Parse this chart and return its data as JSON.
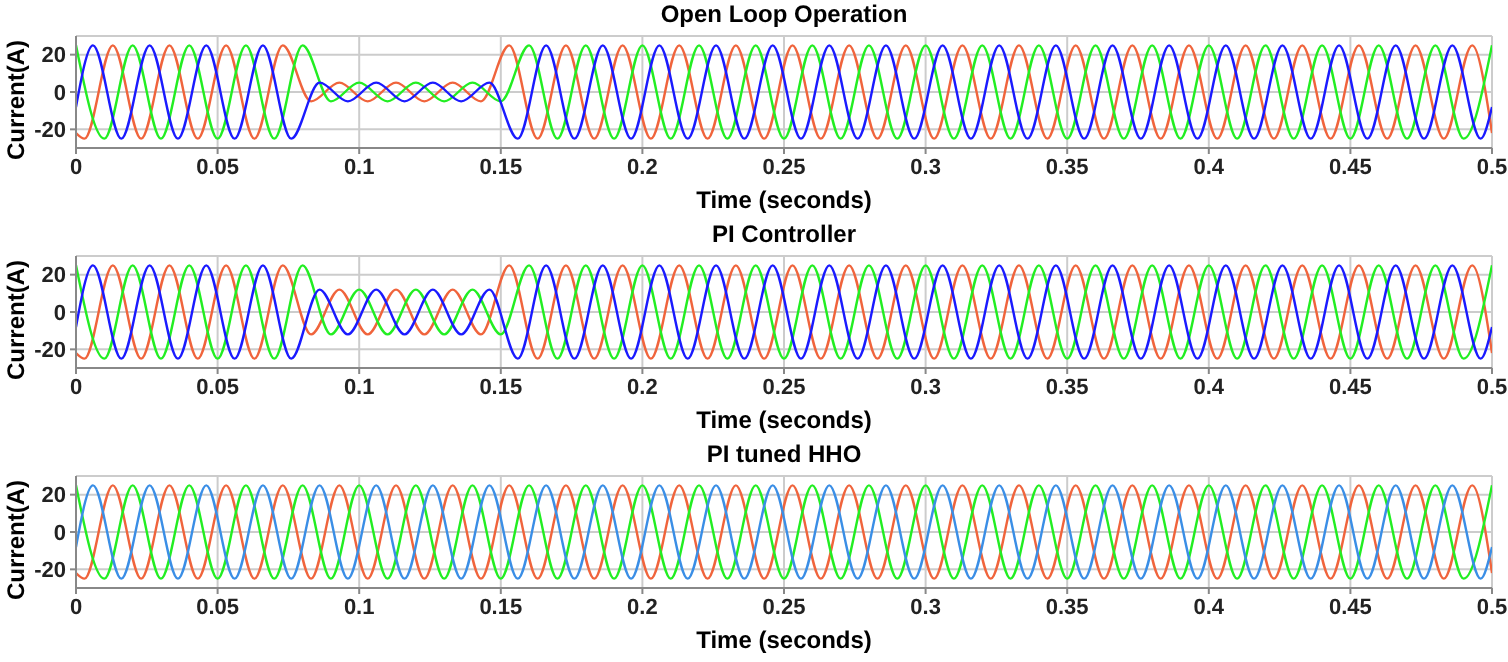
{
  "chart_data": [
    {
      "type": "line",
      "title": "Open Loop Operation",
      "xlabel": "Time (seconds)",
      "ylabel": "Current(A)",
      "xlim": [
        0,
        0.5
      ],
      "xticks": [
        0,
        0.05,
        0.1,
        0.15,
        0.2,
        0.25,
        0.3,
        0.35,
        0.4,
        0.45,
        0.5
      ],
      "ylim": [
        -30,
        30
      ],
      "yticks": [
        -20,
        0,
        20
      ],
      "grid": true,
      "marker": "none",
      "series": [
        {
          "color": "#f0643c",
          "x": [
            0,
            0.003,
            0.013,
            0.023,
            0.033,
            0.043,
            0.053,
            0.063,
            0.073,
            0.083,
            0.093,
            0.103,
            0.113,
            0.123,
            0.133,
            0.143,
            0.153,
            0.163,
            0.173,
            0.183,
            0.193,
            0.203,
            0.213,
            0.223,
            0.233,
            0.243,
            0.253,
            0.263,
            0.273,
            0.283,
            0.293,
            0.303,
            0.313,
            0.323,
            0.333,
            0.343,
            0.353,
            0.363,
            0.373,
            0.383,
            0.393,
            0.403,
            0.413,
            0.423,
            0.433,
            0.443,
            0.453,
            0.463,
            0.473,
            0.483,
            0.493,
            0.5
          ],
          "values": [
            -22,
            -25,
            25,
            -25,
            25,
            -25,
            25,
            -25,
            25,
            -5,
            5,
            -5,
            5,
            -5,
            5,
            -5,
            25,
            -25,
            25,
            -25,
            25,
            -25,
            25,
            -25,
            25,
            -25,
            25,
            -25,
            25,
            -25,
            25,
            -25,
            25,
            -25,
            25,
            -25,
            25,
            -25,
            25,
            -25,
            25,
            -25,
            25,
            -25,
            25,
            -25,
            25,
            -25,
            25,
            -25,
            25,
            -22
          ]
        },
        {
          "color": "#22ee22",
          "x": [
            0,
            0.01,
            0.02,
            0.03,
            0.04,
            0.05,
            0.06,
            0.07,
            0.08,
            0.09,
            0.1,
            0.11,
            0.12,
            0.13,
            0.14,
            0.15,
            0.16,
            0.17,
            0.18,
            0.19,
            0.2,
            0.21,
            0.22,
            0.23,
            0.24,
            0.25,
            0.26,
            0.27,
            0.28,
            0.29,
            0.3,
            0.31,
            0.32,
            0.33,
            0.34,
            0.35,
            0.36,
            0.37,
            0.38,
            0.39,
            0.4,
            0.41,
            0.42,
            0.43,
            0.44,
            0.45,
            0.46,
            0.47,
            0.48,
            0.49,
            0.5
          ],
          "values": [
            25,
            -25,
            25,
            -25,
            25,
            -25,
            25,
            -25,
            25,
            -5,
            5,
            -5,
            5,
            -5,
            5,
            -5,
            25,
            -25,
            25,
            -25,
            25,
            -25,
            25,
            -25,
            25,
            -25,
            25,
            -25,
            25,
            -25,
            25,
            -25,
            25,
            -25,
            25,
            -25,
            25,
            -25,
            25,
            -25,
            25,
            -25,
            25,
            -25,
            25,
            -25,
            25,
            -25,
            25,
            -25,
            25
          ]
        },
        {
          "color": "#1a1aff",
          "x": [
            0,
            0.006,
            0.016,
            0.026,
            0.036,
            0.046,
            0.056,
            0.066,
            0.076,
            0.086,
            0.096,
            0.106,
            0.116,
            0.126,
            0.136,
            0.146,
            0.156,
            0.166,
            0.176,
            0.186,
            0.196,
            0.206,
            0.216,
            0.226,
            0.236,
            0.246,
            0.256,
            0.266,
            0.276,
            0.286,
            0.296,
            0.306,
            0.316,
            0.326,
            0.336,
            0.346,
            0.356,
            0.366,
            0.376,
            0.386,
            0.396,
            0.406,
            0.416,
            0.426,
            0.436,
            0.446,
            0.456,
            0.466,
            0.476,
            0.486,
            0.496,
            0.5
          ],
          "values": [
            -8,
            25,
            -25,
            25,
            -25,
            25,
            -25,
            25,
            -25,
            5,
            -5,
            5,
            -5,
            5,
            -5,
            5,
            -25,
            25,
            -25,
            25,
            -25,
            25,
            -25,
            25,
            -25,
            25,
            -25,
            25,
            -25,
            25,
            -25,
            25,
            -25,
            25,
            -25,
            25,
            -25,
            25,
            -25,
            25,
            -25,
            25,
            -25,
            25,
            -25,
            25,
            -25,
            25,
            -25,
            25,
            -25,
            -8
          ]
        }
      ]
    },
    {
      "type": "line",
      "title": "PI Controller",
      "xlabel": "Time (seconds)",
      "ylabel": "Current(A)",
      "xlim": [
        0,
        0.5
      ],
      "xticks": [
        0,
        0.05,
        0.1,
        0.15,
        0.2,
        0.25,
        0.3,
        0.35,
        0.4,
        0.45,
        0.5
      ],
      "ylim": [
        -30,
        30
      ],
      "yticks": [
        -20,
        0,
        20
      ],
      "grid": true,
      "marker": "none",
      "series": [
        {
          "color": "#f0643c",
          "x": [
            0,
            0.003,
            0.013,
            0.023,
            0.033,
            0.043,
            0.053,
            0.063,
            0.073,
            0.083,
            0.093,
            0.103,
            0.113,
            0.123,
            0.133,
            0.143,
            0.153,
            0.163,
            0.173,
            0.183,
            0.193,
            0.203,
            0.213,
            0.223,
            0.233,
            0.243,
            0.253,
            0.263,
            0.273,
            0.283,
            0.293,
            0.303,
            0.313,
            0.323,
            0.333,
            0.343,
            0.353,
            0.363,
            0.373,
            0.383,
            0.393,
            0.403,
            0.413,
            0.423,
            0.433,
            0.443,
            0.453,
            0.463,
            0.473,
            0.483,
            0.493,
            0.5
          ],
          "values": [
            -22,
            -25,
            25,
            -25,
            25,
            -25,
            25,
            -25,
            25,
            -12,
            12,
            -12,
            12,
            -12,
            12,
            -12,
            25,
            -25,
            25,
            -25,
            25,
            -25,
            25,
            -25,
            25,
            -25,
            25,
            -25,
            25,
            -25,
            25,
            -25,
            25,
            -25,
            25,
            -25,
            25,
            -25,
            25,
            -25,
            25,
            -25,
            25,
            -25,
            25,
            -25,
            25,
            -25,
            25,
            -25,
            25,
            -22
          ]
        },
        {
          "color": "#22ee22",
          "x": [
            0,
            0.01,
            0.02,
            0.03,
            0.04,
            0.05,
            0.06,
            0.07,
            0.08,
            0.09,
            0.1,
            0.11,
            0.12,
            0.13,
            0.14,
            0.15,
            0.16,
            0.17,
            0.18,
            0.19,
            0.2,
            0.21,
            0.22,
            0.23,
            0.24,
            0.25,
            0.26,
            0.27,
            0.28,
            0.29,
            0.3,
            0.31,
            0.32,
            0.33,
            0.34,
            0.35,
            0.36,
            0.37,
            0.38,
            0.39,
            0.4,
            0.41,
            0.42,
            0.43,
            0.44,
            0.45,
            0.46,
            0.47,
            0.48,
            0.49,
            0.5
          ],
          "values": [
            25,
            -25,
            25,
            -25,
            25,
            -25,
            25,
            -25,
            25,
            -12,
            12,
            -12,
            12,
            -12,
            12,
            -12,
            25,
            -25,
            25,
            -25,
            25,
            -25,
            25,
            -25,
            25,
            -25,
            25,
            -25,
            25,
            -25,
            25,
            -25,
            25,
            -25,
            25,
            -25,
            25,
            -25,
            25,
            -25,
            25,
            -25,
            25,
            -25,
            25,
            -25,
            25,
            -25,
            25,
            -25,
            25
          ]
        },
        {
          "color": "#1a1aff",
          "x": [
            0,
            0.006,
            0.016,
            0.026,
            0.036,
            0.046,
            0.056,
            0.066,
            0.076,
            0.086,
            0.096,
            0.106,
            0.116,
            0.126,
            0.136,
            0.146,
            0.156,
            0.166,
            0.176,
            0.186,
            0.196,
            0.206,
            0.216,
            0.226,
            0.236,
            0.246,
            0.256,
            0.266,
            0.276,
            0.286,
            0.296,
            0.306,
            0.316,
            0.326,
            0.336,
            0.346,
            0.356,
            0.366,
            0.376,
            0.386,
            0.396,
            0.406,
            0.416,
            0.426,
            0.436,
            0.446,
            0.456,
            0.466,
            0.476,
            0.486,
            0.496,
            0.5
          ],
          "values": [
            -8,
            25,
            -25,
            25,
            -25,
            25,
            -25,
            25,
            -25,
            12,
            -12,
            12,
            -12,
            12,
            -12,
            12,
            -25,
            25,
            -25,
            25,
            -25,
            25,
            -25,
            25,
            -25,
            25,
            -25,
            25,
            -25,
            25,
            -25,
            25,
            -25,
            25,
            -25,
            25,
            -25,
            25,
            -25,
            25,
            -25,
            25,
            -25,
            25,
            -25,
            25,
            -25,
            25,
            -25,
            25,
            -25,
            -8
          ]
        }
      ]
    },
    {
      "type": "line",
      "title": "PI tuned HHO",
      "xlabel": "Time (seconds)",
      "ylabel": "Current(A)",
      "xlim": [
        0,
        0.5
      ],
      "xticks": [
        0,
        0.05,
        0.1,
        0.15,
        0.2,
        0.25,
        0.3,
        0.35,
        0.4,
        0.45,
        0.5
      ],
      "ylim": [
        -30,
        30
      ],
      "yticks": [
        -20,
        0,
        20
      ],
      "grid": true,
      "marker": "none",
      "series": [
        {
          "color": "#f0643c",
          "x": [
            0,
            0.003,
            0.013,
            0.023,
            0.033,
            0.043,
            0.053,
            0.063,
            0.073,
            0.083,
            0.093,
            0.103,
            0.113,
            0.123,
            0.133,
            0.143,
            0.153,
            0.163,
            0.173,
            0.183,
            0.193,
            0.203,
            0.213,
            0.223,
            0.233,
            0.243,
            0.253,
            0.263,
            0.273,
            0.283,
            0.293,
            0.303,
            0.313,
            0.323,
            0.333,
            0.343,
            0.353,
            0.363,
            0.373,
            0.383,
            0.393,
            0.403,
            0.413,
            0.423,
            0.433,
            0.443,
            0.453,
            0.463,
            0.473,
            0.483,
            0.493,
            0.5
          ],
          "values": [
            -22,
            -25,
            25,
            -25,
            25,
            -25,
            25,
            -25,
            25,
            -25,
            25,
            -25,
            25,
            -25,
            25,
            -25,
            25,
            -25,
            25,
            -25,
            25,
            -25,
            25,
            -25,
            25,
            -25,
            25,
            -25,
            25,
            -25,
            25,
            -25,
            25,
            -25,
            25,
            -25,
            25,
            -25,
            25,
            -25,
            25,
            -25,
            25,
            -25,
            25,
            -25,
            25,
            -25,
            25,
            -25,
            25,
            -22
          ]
        },
        {
          "color": "#22ee22",
          "x": [
            0,
            0.01,
            0.02,
            0.03,
            0.04,
            0.05,
            0.06,
            0.07,
            0.08,
            0.09,
            0.1,
            0.11,
            0.12,
            0.13,
            0.14,
            0.15,
            0.16,
            0.17,
            0.18,
            0.19,
            0.2,
            0.21,
            0.22,
            0.23,
            0.24,
            0.25,
            0.26,
            0.27,
            0.28,
            0.29,
            0.3,
            0.31,
            0.32,
            0.33,
            0.34,
            0.35,
            0.36,
            0.37,
            0.38,
            0.39,
            0.4,
            0.41,
            0.42,
            0.43,
            0.44,
            0.45,
            0.46,
            0.47,
            0.48,
            0.49,
            0.5
          ],
          "values": [
            25,
            -25,
            25,
            -25,
            25,
            -25,
            25,
            -25,
            25,
            -25,
            25,
            -25,
            25,
            -25,
            25,
            -25,
            25,
            -25,
            25,
            -25,
            25,
            -25,
            25,
            -25,
            25,
            -25,
            25,
            -25,
            25,
            -25,
            25,
            -25,
            25,
            -25,
            25,
            -25,
            25,
            -25,
            25,
            -25,
            25,
            -25,
            25,
            -25,
            25,
            -25,
            25,
            -25,
            25,
            -25,
            25
          ]
        },
        {
          "color": "#3a8ee6",
          "x": [
            0,
            0.006,
            0.016,
            0.026,
            0.036,
            0.046,
            0.056,
            0.066,
            0.076,
            0.086,
            0.096,
            0.106,
            0.116,
            0.126,
            0.136,
            0.146,
            0.156,
            0.166,
            0.176,
            0.186,
            0.196,
            0.206,
            0.216,
            0.226,
            0.236,
            0.246,
            0.256,
            0.266,
            0.276,
            0.286,
            0.296,
            0.306,
            0.316,
            0.326,
            0.336,
            0.346,
            0.356,
            0.366,
            0.376,
            0.386,
            0.396,
            0.406,
            0.416,
            0.426,
            0.436,
            0.446,
            0.456,
            0.466,
            0.476,
            0.486,
            0.496,
            0.5
          ],
          "values": [
            -8,
            25,
            -25,
            25,
            -25,
            25,
            -25,
            25,
            -25,
            25,
            -25,
            25,
            -25,
            25,
            -25,
            25,
            -25,
            25,
            -25,
            25,
            -25,
            25,
            -25,
            25,
            -25,
            25,
            -25,
            25,
            -25,
            25,
            -25,
            25,
            -25,
            25,
            -25,
            25,
            -25,
            25,
            -25,
            25,
            -25,
            25,
            -25,
            25,
            -25,
            25,
            -25,
            25,
            -25,
            25,
            -25,
            -8
          ]
        }
      ]
    }
  ]
}
